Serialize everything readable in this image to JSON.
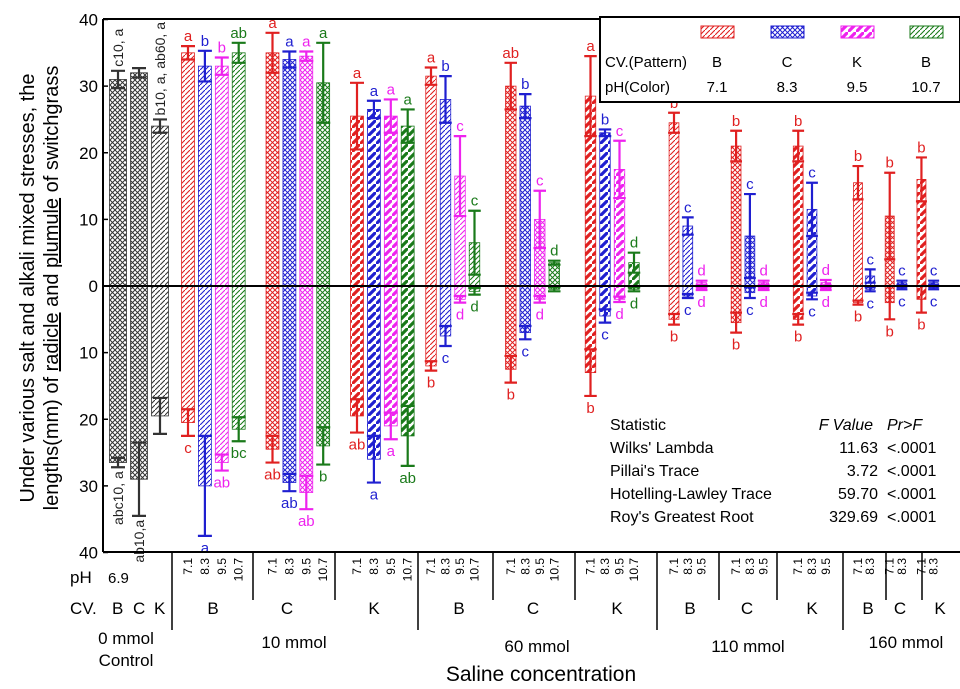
{
  "chart_data": {
    "type": "bar",
    "ylabel": "Under various salt and alkali mixed stresses, the lengths(mm) of radicle and plumule of switchgrass",
    "ylabel_line1": "Under various salt and alkali mixed stresses, the",
    "ylabel_line2_pre": "lengths(mm) of ",
    "ylabel_line2_radicle": "radicle",
    "ylabel_line2_mid": " and ",
    "ylabel_line2_plumule": "plumule",
    "ylabel_line2_post": " of switchgrass",
    "xlabel": "Saline concentration",
    "ylim": [
      -40,
      40
    ],
    "ytick_values": [
      40,
      30,
      20,
      10,
      0,
      -10,
      -20,
      -30,
      -40
    ],
    "ytick_labels": [
      "40",
      "30",
      "20",
      "10",
      "0",
      "10",
      "20",
      "30",
      "40"
    ],
    "upper_series": "plumule",
    "lower_series": "radicle",
    "ph_colors": {
      "7.1": "#e02020",
      "8.3": "#1f1fd0",
      "9.5": "#ee22ee",
      "10.7": "#1a7a1a",
      "6.9": "#333333"
    },
    "bars": [
      {
        "group": "0 mmol",
        "cv": "B",
        "ph": "6.9",
        "up": 31.0,
        "up_err": 1.3,
        "up_label": "c10, a",
        "down": 26.5,
        "down_err": 0.7,
        "down_label": "abc10, a"
      },
      {
        "group": "0 mmol",
        "cv": "C",
        "ph": "6.9",
        "up": 32.0,
        "up_err": 0.7,
        "up_label": "",
        "down": 29.0,
        "down_err": 5.5,
        "down_label": "ab10,a"
      },
      {
        "group": "0 mmol",
        "cv": "K",
        "ph": "6.9",
        "up": 24.0,
        "up_err": 1.0,
        "up_label": "b10, a, ab60, a",
        "down": 19.5,
        "down_err": 2.7,
        "down_label": ""
      },
      {
        "group": "10 mmol",
        "cv": "B",
        "ph": "7.1",
        "up": 35.0,
        "up_err": 1.0,
        "up_label": "a",
        "down": 20.5,
        "down_err": 2.0,
        "down_label": "c"
      },
      {
        "group": "10 mmol",
        "cv": "B",
        "ph": "8.3",
        "up": 33.0,
        "up_err": 2.3,
        "up_label": "b",
        "down": 30.0,
        "down_err": 7.5,
        "down_label": "a"
      },
      {
        "group": "10 mmol",
        "cv": "B",
        "ph": "9.5",
        "up": 33.0,
        "up_err": 1.3,
        "up_label": "b",
        "down": 26.5,
        "down_err": 1.2,
        "down_label": "ab"
      },
      {
        "group": "10 mmol",
        "cv": "B",
        "ph": "10.7",
        "up": 35.0,
        "up_err": 1.5,
        "up_label": "ab",
        "down": 21.5,
        "down_err": 1.8,
        "down_label": "bc"
      },
      {
        "group": "10 mmol",
        "cv": "C",
        "ph": "7.1",
        "up": 35.0,
        "up_err": 3.0,
        "up_label": "a",
        "down": 24.5,
        "down_err": 2.0,
        "down_label": "ab"
      },
      {
        "group": "10 mmol",
        "cv": "C",
        "ph": "8.3",
        "up": 34.0,
        "up_err": 1.2,
        "up_label": "a",
        "down": 29.5,
        "down_err": 1.3,
        "down_label": "ab"
      },
      {
        "group": "10 mmol",
        "cv": "C",
        "ph": "9.5",
        "up": 34.5,
        "up_err": 0.7,
        "up_label": "a",
        "down": 31.0,
        "down_err": 2.5,
        "down_label": "ab"
      },
      {
        "group": "10 mmol",
        "cv": "C",
        "ph": "10.7",
        "up": 30.5,
        "up_err": 6.0,
        "up_label": "a",
        "down": 24.0,
        "down_err": 2.8,
        "down_label": "b"
      },
      {
        "group": "10 mmol",
        "cv": "K",
        "ph": "7.1",
        "up": 25.5,
        "up_err": 5.0,
        "up_label": "a",
        "down": 19.5,
        "down_err": 2.5,
        "down_label": "ab"
      },
      {
        "group": "10 mmol",
        "cv": "K",
        "ph": "8.3",
        "up": 26.5,
        "up_err": 1.3,
        "up_label": "a",
        "down": 26.0,
        "down_err": 3.5,
        "down_label": "a"
      },
      {
        "group": "10 mmol",
        "cv": "K",
        "ph": "9.5",
        "up": 25.5,
        "up_err": 2.5,
        "up_label": "a",
        "down": 21.0,
        "down_err": 2.0,
        "down_label": "a"
      },
      {
        "group": "10 mmol",
        "cv": "K",
        "ph": "10.7",
        "up": 24.0,
        "up_err": 2.5,
        "up_label": "a",
        "down": 22.5,
        "down_err": 4.5,
        "down_label": "ab"
      },
      {
        "group": "60 mmol",
        "cv": "B",
        "ph": "7.1",
        "up": 31.5,
        "up_err": 1.3,
        "up_label": "a",
        "down": 12.0,
        "down_err": 0.7,
        "down_label": "b"
      },
      {
        "group": "60 mmol",
        "cv": "B",
        "ph": "8.3",
        "up": 28.0,
        "up_err": 3.5,
        "up_label": "b",
        "down": 7.5,
        "down_err": 1.5,
        "down_label": "c"
      },
      {
        "group": "60 mmol",
        "cv": "B",
        "ph": "9.5",
        "up": 16.5,
        "up_err": 6.0,
        "up_label": "c",
        "down": 2.0,
        "down_err": 0.5,
        "down_label": "d"
      },
      {
        "group": "60 mmol",
        "cv": "B",
        "ph": "10.7",
        "up": 6.5,
        "up_err": 4.8,
        "up_label": "c",
        "down": 0.8,
        "down_err": 0.5,
        "down_label": "d"
      },
      {
        "group": "60 mmol",
        "cv": "C",
        "ph": "7.1",
        "up": 30.0,
        "up_err": 3.5,
        "up_label": "ab",
        "down": 12.5,
        "down_err": 2.0,
        "down_label": "b"
      },
      {
        "group": "60 mmol",
        "cv": "C",
        "ph": "8.3",
        "up": 27.0,
        "up_err": 1.8,
        "up_label": "b",
        "down": 7.0,
        "down_err": 1.0,
        "down_label": "c"
      },
      {
        "group": "60 mmol",
        "cv": "C",
        "ph": "9.5",
        "up": 10.0,
        "up_err": 4.3,
        "up_label": "c",
        "down": 2.0,
        "down_err": 0.5,
        "down_label": "d"
      },
      {
        "group": "60 mmol",
        "cv": "C",
        "ph": "10.7",
        "up": 3.5,
        "up_err": 0.3,
        "up_label": "d",
        "down": 0.5,
        "down_err": 0.3,
        "down_label": ""
      },
      {
        "group": "60 mmol",
        "cv": "K",
        "ph": "7.1",
        "up": 28.5,
        "up_err": 6.0,
        "up_label": "a",
        "down": 13.0,
        "down_err": 3.5,
        "down_label": "b"
      },
      {
        "group": "60 mmol",
        "cv": "K",
        "ph": "8.3",
        "up": 23.0,
        "up_err": 0.5,
        "up_label": "b",
        "down": 4.5,
        "down_err": 1.0,
        "down_label": "c"
      },
      {
        "group": "60 mmol",
        "cv": "K",
        "ph": "9.5",
        "up": 17.5,
        "up_err": 4.3,
        "up_label": "c",
        "down": 2.0,
        "down_err": 0.4,
        "down_label": "d"
      },
      {
        "group": "60 mmol",
        "cv": "K",
        "ph": "10.7",
        "up": 3.5,
        "up_err": 1.5,
        "up_label": "d",
        "down": 0.5,
        "down_err": 0.3,
        "down_label": "d"
      },
      {
        "group": "110 mmol",
        "cv": "B",
        "ph": "7.1",
        "up": 24.5,
        "up_err": 1.5,
        "up_label": "b",
        "down": 5.0,
        "down_err": 0.8,
        "down_label": "b"
      },
      {
        "group": "110 mmol",
        "cv": "B",
        "ph": "8.3",
        "up": 9.0,
        "up_err": 1.3,
        "up_label": "c",
        "down": 1.5,
        "down_err": 0.3,
        "down_label": "c"
      },
      {
        "group": "110 mmol",
        "cv": "B",
        "ph": "9.5",
        "up": 0.5,
        "up_err": 0.3,
        "up_label": "d",
        "down": 0.4,
        "down_err": 0.2,
        "down_label": "d"
      },
      {
        "group": "110 mmol",
        "cv": "C",
        "ph": "7.1",
        "up": 21.0,
        "up_err": 2.3,
        "up_label": "b",
        "down": 5.5,
        "down_err": 1.5,
        "down_label": "b"
      },
      {
        "group": "110 mmol",
        "cv": "C",
        "ph": "8.3",
        "up": 7.5,
        "up_err": 6.3,
        "up_label": "c",
        "down": 1.0,
        "down_err": 0.8,
        "down_label": "c"
      },
      {
        "group": "110 mmol",
        "cv": "C",
        "ph": "9.5",
        "up": 0.5,
        "up_err": 0.3,
        "up_label": "d",
        "down": 0.4,
        "down_err": 0.2,
        "down_label": "d"
      },
      {
        "group": "110 mmol",
        "cv": "K",
        "ph": "7.1",
        "up": 21.0,
        "up_err": 2.3,
        "up_label": "b",
        "down": 5.0,
        "down_err": 0.8,
        "down_label": "b"
      },
      {
        "group": "110 mmol",
        "cv": "K",
        "ph": "8.3",
        "up": 11.5,
        "up_err": 4.0,
        "up_label": "c",
        "down": 1.5,
        "down_err": 0.5,
        "down_label": "c"
      },
      {
        "group": "110 mmol",
        "cv": "K",
        "ph": "9.5",
        "up": 0.5,
        "up_err": 0.4,
        "up_label": "d",
        "down": 0.4,
        "down_err": 0.2,
        "down_label": "d"
      },
      {
        "group": "160 mmol",
        "cv": "B",
        "ph": "7.1",
        "up": 15.5,
        "up_err": 2.5,
        "up_label": "b",
        "down": 2.5,
        "down_err": 0.3,
        "down_label": "b"
      },
      {
        "group": "160 mmol",
        "cv": "B",
        "ph": "8.3",
        "up": 1.5,
        "up_err": 1.0,
        "up_label": "c",
        "down": 0.5,
        "down_err": 0.3,
        "down_label": "c"
      },
      {
        "group": "160 mmol",
        "cv": "C",
        "ph": "7.1",
        "up": 10.5,
        "up_err": 6.5,
        "up_label": "b",
        "down": 2.5,
        "down_err": 2.5,
        "down_label": "b"
      },
      {
        "group": "160 mmol",
        "cv": "C",
        "ph": "8.3",
        "up": 0.5,
        "up_err": 0.3,
        "up_label": "c",
        "down": 0.3,
        "down_err": 0.2,
        "down_label": "c"
      },
      {
        "group": "160 mmol",
        "cv": "K",
        "ph": "7.1",
        "up": 16.0,
        "up_err": 3.3,
        "up_label": "b",
        "down": 2.0,
        "down_err": 2.0,
        "down_label": "b"
      },
      {
        "group": "160 mmol",
        "cv": "K",
        "ph": "8.3",
        "up": 0.5,
        "up_err": 0.3,
        "up_label": "c",
        "down": 0.3,
        "down_err": 0.2,
        "down_label": "c"
      }
    ]
  },
  "legend": {
    "row1_label": "CV.(Pattern)",
    "row2_label": "pH(Color)",
    "entries": [
      {
        "cv": "B",
        "ph": "7.1",
        "color": "#e02020",
        "pattern": "diag"
      },
      {
        "cv": "C",
        "ph": "8.3",
        "color": "#1f1fd0",
        "pattern": "cross"
      },
      {
        "cv": "K",
        "ph": "9.5",
        "color": "#ee22ee",
        "pattern": "wide"
      },
      {
        "cv": "B",
        "ph": "10.7",
        "color": "#1a7a1a",
        "pattern": "diag"
      }
    ]
  },
  "stats": {
    "header": {
      "statistic": "Statistic",
      "f_value": "F Value",
      "pr": "Pr>F"
    },
    "rows": [
      {
        "name": "Wilks' Lambda",
        "f": "11.63",
        "p": "<.0001"
      },
      {
        "name": "Pillai's Trace",
        "f": "3.72",
        "p": "<.0001"
      },
      {
        "name": "Hotelling-Lawley Trace",
        "f": "59.70",
        "p": "<.0001"
      },
      {
        "name": "Roy's Greatest Root",
        "f": "329.69",
        "p": "<.0001"
      }
    ]
  },
  "xaxis": {
    "ph_row_label": "pH",
    "cv_row_label": "CV.",
    "control_ph": "6.9",
    "control_cvs": [
      "B",
      "C",
      "K"
    ],
    "groups": [
      {
        "name": "0 mmol",
        "sub": "Control",
        "cv_labels": [
          "B",
          "C",
          "K"
        ]
      },
      {
        "name": "10 mmol",
        "sub": "",
        "cv_labels": [
          "B",
          "C",
          "K"
        ]
      },
      {
        "name": "60 mmol",
        "sub": "",
        "cv_labels": [
          "B",
          "C",
          "K"
        ]
      },
      {
        "name": "110 mmol",
        "sub": "",
        "cv_labels": [
          "B",
          "C",
          "K"
        ]
      },
      {
        "name": "160 mmol",
        "sub": "",
        "cv_labels": [
          "B",
          "C",
          "K"
        ]
      }
    ]
  }
}
